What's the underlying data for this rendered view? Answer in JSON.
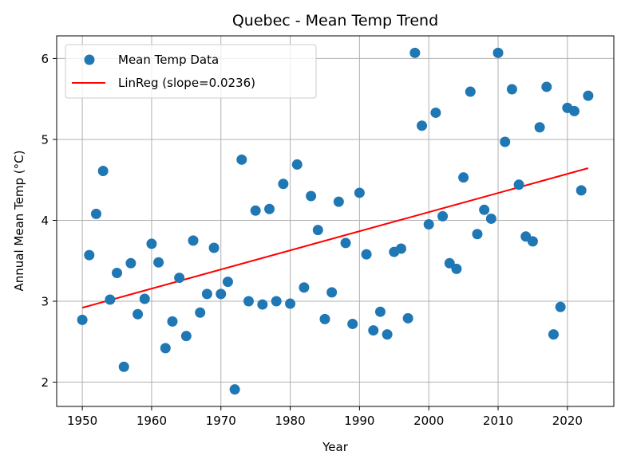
{
  "chart_data": {
    "type": "scatter",
    "title": "Quebec - Mean Temp Trend",
    "xlabel": "Year",
    "ylabel": "Annual Mean Temp (°C)",
    "xlim": [
      1946.3,
      2026.7
    ],
    "ylim": [
      1.7,
      6.28
    ],
    "xticks": [
      1950,
      1960,
      1970,
      1980,
      1990,
      2000,
      2010,
      2020
    ],
    "yticks": [
      2,
      3,
      4,
      5,
      6
    ],
    "grid": true,
    "legend_position": "top-left",
    "series": [
      {
        "name": "Mean Temp Data",
        "kind": "scatter",
        "color": "#1f77b4",
        "x": [
          1950,
          1951,
          1952,
          1953,
          1954,
          1955,
          1956,
          1957,
          1958,
          1959,
          1960,
          1961,
          1962,
          1963,
          1964,
          1965,
          1966,
          1967,
          1968,
          1969,
          1970,
          1971,
          1972,
          1973,
          1974,
          1975,
          1976,
          1977,
          1978,
          1979,
          1980,
          1981,
          1982,
          1983,
          1984,
          1985,
          1986,
          1987,
          1988,
          1989,
          1990,
          1991,
          1992,
          1993,
          1994,
          1995,
          1996,
          1997,
          1998,
          1999,
          2000,
          2001,
          2002,
          2003,
          2004,
          2005,
          2006,
          2007,
          2008,
          2009,
          2010,
          2011,
          2012,
          2013,
          2014,
          2015,
          2016,
          2017,
          2018,
          2019,
          2020,
          2021,
          2022,
          2023
        ],
        "y": [
          2.77,
          3.57,
          4.08,
          4.61,
          3.02,
          3.35,
          2.19,
          3.47,
          2.84,
          3.03,
          3.71,
          3.48,
          2.42,
          2.75,
          3.29,
          2.57,
          3.75,
          2.86,
          3.09,
          3.66,
          3.09,
          3.24,
          1.91,
          4.75,
          3.0,
          4.12,
          2.96,
          4.14,
          3.0,
          4.45,
          2.97,
          4.69,
          3.17,
          4.3,
          3.88,
          2.78,
          3.11,
          4.23,
          3.72,
          2.72,
          4.34,
          3.58,
          2.64,
          2.87,
          2.59,
          3.61,
          3.65,
          2.79,
          6.07,
          5.17,
          3.95,
          5.33,
          4.05,
          3.47,
          3.4,
          4.53,
          5.59,
          3.83,
          4.13,
          4.02,
          6.07,
          4.97,
          5.62,
          4.44,
          3.8,
          3.74,
          5.15,
          5.65,
          2.59,
          2.93,
          5.39,
          5.35,
          4.37,
          5.54
        ]
      },
      {
        "name": "LinReg (slope=0.0236)",
        "kind": "line",
        "color": "#ff0000",
        "x": [
          1950,
          2023
        ],
        "y": [
          2.92,
          4.645
        ]
      }
    ]
  }
}
